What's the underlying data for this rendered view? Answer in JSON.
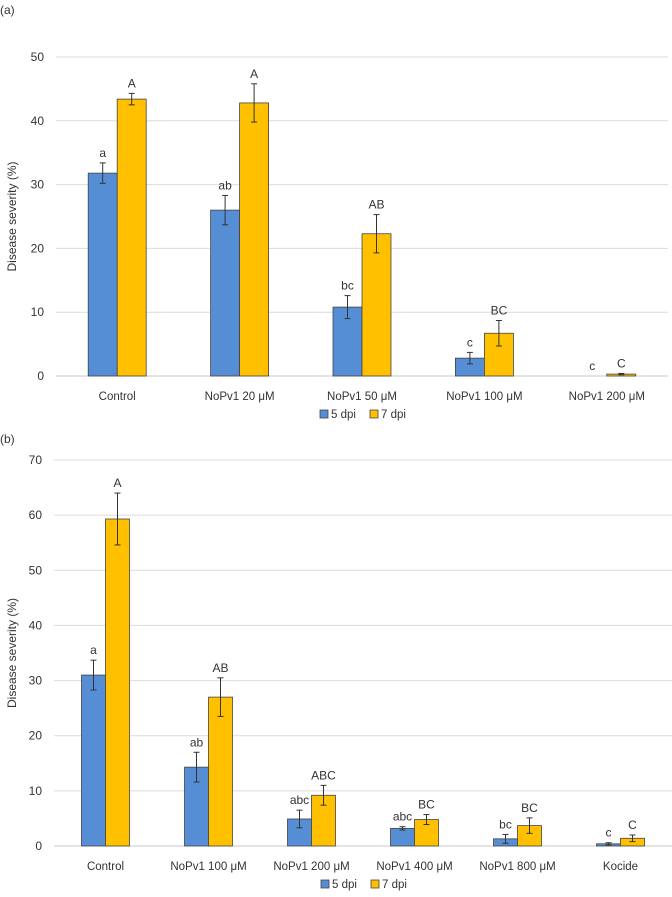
{
  "chart_data": [
    {
      "type": "bar",
      "panel_label": "(a)",
      "ylabel": "Disease severity (%)",
      "ylim": [
        0,
        50
      ],
      "yticks": [
        0,
        10,
        20,
        30,
        40,
        50
      ],
      "grid": true,
      "legend_position": "bottom",
      "categories": [
        "Control",
        "NoPv1 20 μM",
        "NoPv1 50 μM",
        "NoPv1 100 μM",
        "NoPv1 200 μM"
      ],
      "series": [
        {
          "name": "5 dpi",
          "color": "#558ed5",
          "values": [
            31.8,
            26.0,
            10.8,
            2.8,
            0
          ],
          "errors": [
            1.6,
            2.3,
            1.8,
            0.9,
            0
          ],
          "letters": [
            "a",
            "ab",
            "bc",
            "c",
            "c"
          ]
        },
        {
          "name": "7 dpi",
          "color": "#ffc000",
          "values": [
            43.4,
            42.8,
            22.3,
            6.7,
            0.3
          ],
          "errors": [
            0.9,
            3.0,
            3.0,
            2.0,
            0.1
          ],
          "letters": [
            "A",
            "A",
            "AB",
            "BC",
            "C"
          ]
        }
      ]
    },
    {
      "type": "bar",
      "panel_label": "(b)",
      "ylabel": "Disease severity (%)",
      "ylim": [
        0,
        70
      ],
      "yticks": [
        0,
        10,
        20,
        30,
        40,
        50,
        60,
        70
      ],
      "grid": true,
      "legend_position": "bottom",
      "categories": [
        "Control",
        "NoPv1 100 μM",
        "NoPv1 200 μM",
        "NoPv1 400 μM",
        "NoPv1 800 μM",
        "Kocide"
      ],
      "series": [
        {
          "name": "5 dpi",
          "color": "#558ed5",
          "values": [
            31.0,
            14.3,
            4.9,
            3.2,
            1.3,
            0.4
          ],
          "errors": [
            2.7,
            2.7,
            1.6,
            0.3,
            0.8,
            0.2
          ],
          "letters": [
            "a",
            "ab",
            "abc",
            "abc",
            "bc",
            "c"
          ]
        },
        {
          "name": "7 dpi",
          "color": "#ffc000",
          "values": [
            59.3,
            27.0,
            9.2,
            4.8,
            3.7,
            1.4
          ],
          "errors": [
            4.7,
            3.5,
            1.8,
            0.9,
            1.4,
            0.6
          ],
          "letters": [
            "A",
            "AB",
            "ABC",
            "BC",
            "BC",
            "C"
          ]
        }
      ]
    }
  ]
}
